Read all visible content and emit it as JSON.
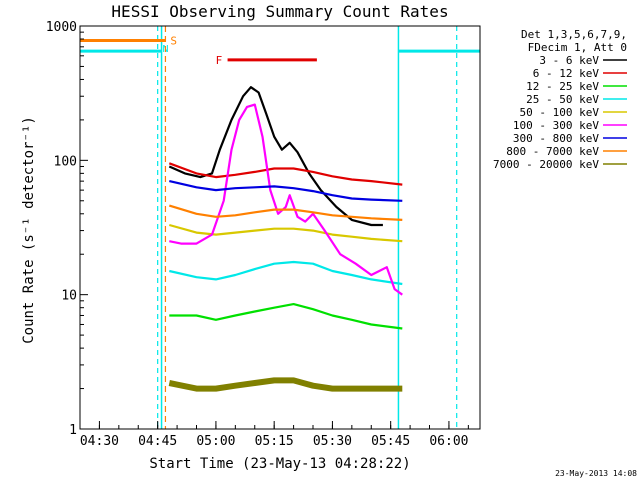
{
  "chart_data": {
    "type": "line",
    "title": "HESSI Observing Summary Count Rates",
    "xlabel": "Start Time (23-May-13 04:28:22)",
    "ylabel": "Count Rate (s⁻¹ detector⁻¹)",
    "x_scale": "time",
    "y_scale": "log",
    "xlim": [
      "04:25",
      "06:08"
    ],
    "ylim": [
      1,
      1000
    ],
    "x_ticks": [
      "04:30",
      "04:45",
      "05:00",
      "05:15",
      "05:30",
      "05:45",
      "06:00"
    ],
    "y_ticks": [
      "1",
      "10",
      "100",
      "1000"
    ],
    "timestamp": "23-May-2013 14:08",
    "legend": {
      "position": "top-right outside",
      "header": [
        "Det 1,3,5,6,7,9,",
        "FDecim 1, Att 0"
      ],
      "entries": [
        {
          "label": "3 - 6 keV",
          "color": "#000000"
        },
        {
          "label": "6 - 12 keV",
          "color": "#e00000"
        },
        {
          "label": "12 - 25 keV",
          "color": "#00e000"
        },
        {
          "label": "25 - 50 keV",
          "color": "#00e8e8"
        },
        {
          "label": "50 - 100 keV",
          "color": "#d8c800"
        },
        {
          "label": "100 - 300 keV",
          "color": "#ff00ff"
        },
        {
          "label": "300 - 800 keV",
          "color": "#0000e0"
        },
        {
          "label": "800 - 7000 keV",
          "color": "#ff8000"
        },
        {
          "label": "7000 - 20000 keV",
          "color": "#808000"
        }
      ]
    },
    "flags": [
      {
        "label": "S",
        "color": "#ff8000",
        "start": "04:25",
        "end": "04:47"
      },
      {
        "label": "F",
        "color": "#e00000",
        "start": "05:03",
        "end": "05:26"
      }
    ],
    "night_markers": {
      "color": "#00e8e8",
      "level": 650,
      "intervals": [
        [
          "04:25",
          "04:46"
        ],
        [
          "05:47",
          "06:08"
        ]
      ],
      "dashed_lines": [
        "04:45",
        "06:02"
      ],
      "solid_lines": [
        "04:46",
        "05:47"
      ],
      "label": "N"
    },
    "saa_marker": {
      "color": "#ff8000",
      "time": "04:47"
    },
    "series": [
      {
        "name": "3 - 6 keV",
        "color": "#000000",
        "points": [
          [
            "04:48",
            90
          ],
          [
            "04:52",
            80
          ],
          [
            "04:56",
            75
          ],
          [
            "04:59",
            80
          ],
          [
            "05:01",
            120
          ],
          [
            "05:04",
            200
          ],
          [
            "05:07",
            300
          ],
          [
            "05:09",
            350
          ],
          [
            "05:11",
            320
          ],
          [
            "05:13",
            220
          ],
          [
            "05:15",
            150
          ],
          [
            "05:17",
            120
          ],
          [
            "05:19",
            135
          ],
          [
            "05:21",
            115
          ],
          [
            "05:24",
            80
          ],
          [
            "05:27",
            60
          ],
          [
            "05:31",
            45
          ],
          [
            "05:35",
            36
          ],
          [
            "05:40",
            33
          ],
          [
            "05:43",
            33
          ]
        ]
      },
      {
        "name": "6 - 12 keV",
        "color": "#e00000",
        "points": [
          [
            "04:48",
            95
          ],
          [
            "04:55",
            80
          ],
          [
            "05:00",
            75
          ],
          [
            "05:05",
            78
          ],
          [
            "05:10",
            82
          ],
          [
            "05:15",
            87
          ],
          [
            "05:20",
            87
          ],
          [
            "05:25",
            82
          ],
          [
            "05:30",
            76
          ],
          [
            "05:35",
            72
          ],
          [
            "05:40",
            70
          ],
          [
            "05:48",
            66
          ]
        ]
      },
      {
        "name": "12 - 25 keV",
        "color": "#00e000",
        "points": [
          [
            "04:48",
            7
          ],
          [
            "04:55",
            7
          ],
          [
            "05:00",
            6.5
          ],
          [
            "05:05",
            7
          ],
          [
            "05:10",
            7.5
          ],
          [
            "05:15",
            8
          ],
          [
            "05:20",
            8.5
          ],
          [
            "05:25",
            7.8
          ],
          [
            "05:30",
            7
          ],
          [
            "05:35",
            6.5
          ],
          [
            "05:40",
            6
          ],
          [
            "05:48",
            5.6
          ]
        ]
      },
      {
        "name": "25 - 50 keV",
        "color": "#00e8e8",
        "points": [
          [
            "04:48",
            15
          ],
          [
            "04:55",
            13.5
          ],
          [
            "05:00",
            13
          ],
          [
            "05:05",
            14
          ],
          [
            "05:10",
            15.5
          ],
          [
            "05:15",
            17
          ],
          [
            "05:20",
            17.5
          ],
          [
            "05:25",
            17
          ],
          [
            "05:30",
            15
          ],
          [
            "05:35",
            14
          ],
          [
            "05:40",
            13
          ],
          [
            "05:48",
            12
          ]
        ]
      },
      {
        "name": "50 - 100 keV",
        "color": "#d8c800",
        "points": [
          [
            "04:48",
            33
          ],
          [
            "04:55",
            29
          ],
          [
            "05:00",
            28
          ],
          [
            "05:05",
            29
          ],
          [
            "05:10",
            30
          ],
          [
            "05:15",
            31
          ],
          [
            "05:20",
            31
          ],
          [
            "05:25",
            30
          ],
          [
            "05:30",
            28
          ],
          [
            "05:35",
            27
          ],
          [
            "05:40",
            26
          ],
          [
            "05:48",
            25
          ]
        ]
      },
      {
        "name": "100 - 300 keV",
        "color": "#ff00ff",
        "points": [
          [
            "04:48",
            25
          ],
          [
            "04:51",
            24
          ],
          [
            "04:55",
            24
          ],
          [
            "04:59",
            28
          ],
          [
            "05:02",
            50
          ],
          [
            "05:04",
            120
          ],
          [
            "05:06",
            200
          ],
          [
            "05:08",
            250
          ],
          [
            "05:10",
            260
          ],
          [
            "05:12",
            150
          ],
          [
            "05:14",
            60
          ],
          [
            "05:16",
            40
          ],
          [
            "05:18",
            45
          ],
          [
            "05:19",
            55
          ],
          [
            "05:21",
            38
          ],
          [
            "05:23",
            35
          ],
          [
            "05:25",
            40
          ],
          [
            "05:28",
            30
          ],
          [
            "05:32",
            20
          ],
          [
            "05:36",
            17
          ],
          [
            "05:40",
            14
          ],
          [
            "05:44",
            16
          ],
          [
            "05:46",
            11
          ],
          [
            "05:48",
            10
          ]
        ]
      },
      {
        "name": "300 - 800 keV",
        "color": "#0000e0",
        "points": [
          [
            "04:48",
            70
          ],
          [
            "04:55",
            63
          ],
          [
            "05:00",
            60
          ],
          [
            "05:05",
            62
          ],
          [
            "05:10",
            63
          ],
          [
            "05:15",
            64
          ],
          [
            "05:20",
            62
          ],
          [
            "05:25",
            59
          ],
          [
            "05:30",
            55
          ],
          [
            "05:35",
            52
          ],
          [
            "05:40",
            51
          ],
          [
            "05:48",
            50
          ]
        ]
      },
      {
        "name": "800 - 7000 keV",
        "color": "#ff8000",
        "points": [
          [
            "04:48",
            46
          ],
          [
            "04:55",
            40
          ],
          [
            "05:00",
            38
          ],
          [
            "05:05",
            39
          ],
          [
            "05:10",
            41
          ],
          [
            "05:15",
            43
          ],
          [
            "05:20",
            43
          ],
          [
            "05:25",
            41
          ],
          [
            "05:30",
            39
          ],
          [
            "05:35",
            38
          ],
          [
            "05:40",
            37
          ],
          [
            "05:48",
            36
          ]
        ]
      },
      {
        "name": "7000 - 20000 keV",
        "color": "#808000",
        "points": [
          [
            "04:48",
            2.2
          ],
          [
            "04:55",
            2
          ],
          [
            "05:00",
            2
          ],
          [
            "05:05",
            2.1
          ],
          [
            "05:10",
            2.2
          ],
          [
            "05:15",
            2.3
          ],
          [
            "05:20",
            2.3
          ],
          [
            "05:25",
            2.1
          ],
          [
            "05:30",
            2
          ],
          [
            "05:35",
            2
          ],
          [
            "05:40",
            2
          ],
          [
            "05:48",
            2
          ]
        ]
      }
    ]
  }
}
